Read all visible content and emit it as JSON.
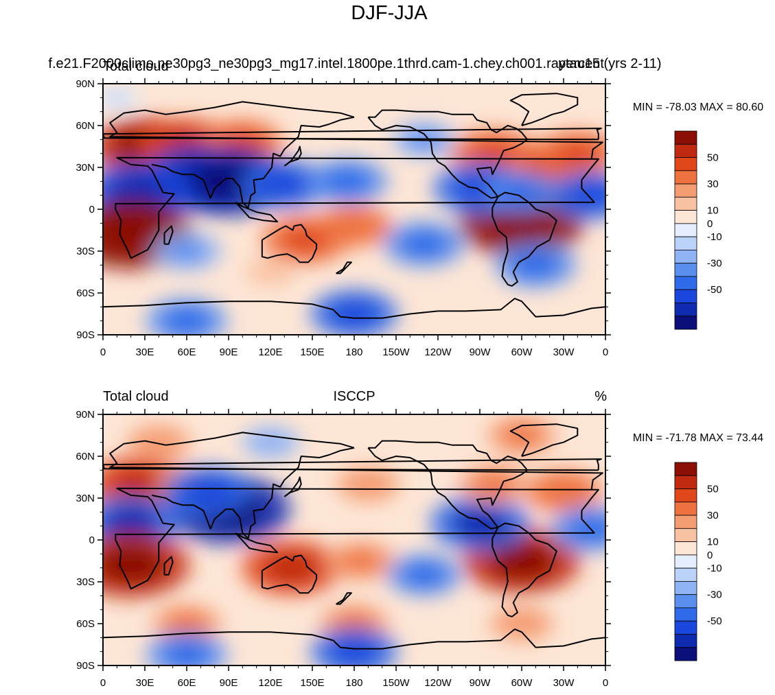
{
  "figure_title": "DJF-JJA",
  "run_title": "f.e21.F2000climo.ne30pg3_ne30pg3_mg17.intel.1800pe.1thrd.cam-1.chey.ch001.raytau15 (yrs 2-11)",
  "chart_data": [
    {
      "type": "heatmap",
      "panel_id": "model",
      "title_left": "Total cloud",
      "title_center": "",
      "title_right": "percent",
      "stats": "MIN = -78.03 MAX =  80.60",
      "xlabel": "",
      "ylabel": "",
      "x_ticks": [
        "0",
        "30E",
        "60E",
        "90E",
        "120E",
        "150E",
        "180",
        "150W",
        "120W",
        "90W",
        "60W",
        "30W",
        "0"
      ],
      "y_ticks": [
        "90N",
        "60N",
        "30N",
        "0",
        "30S",
        "60S",
        "90S"
      ],
      "xlim": [
        0,
        360
      ],
      "ylim": [
        -90,
        90
      ],
      "colorbar_labels": [
        "50",
        "30",
        "10",
        "0",
        "-10",
        "-30",
        "-50"
      ],
      "levels": [
        -60,
        -50,
        -40,
        -30,
        -20,
        -10,
        -5,
        0,
        5,
        10,
        20,
        30,
        40,
        50,
        60
      ],
      "anomalies": [
        {
          "lon": 30,
          "lat": 45,
          "value": 55
        },
        {
          "lon": 60,
          "lat": 45,
          "value": 50
        },
        {
          "lon": 100,
          "lat": 48,
          "value": 35
        },
        {
          "lon": 70,
          "lat": 22,
          "value": -65
        },
        {
          "lon": 90,
          "lat": 20,
          "value": -70
        },
        {
          "lon": 25,
          "lat": 12,
          "value": -55
        },
        {
          "lon": 130,
          "lat": 18,
          "value": -40
        },
        {
          "lon": 175,
          "lat": 20,
          "value": -35
        },
        {
          "lon": 20,
          "lat": -18,
          "value": 70
        },
        {
          "lon": 145,
          "lat": -22,
          "value": 40
        },
        {
          "lon": 180,
          "lat": -12,
          "value": 30
        },
        {
          "lon": 300,
          "lat": -10,
          "value": 70
        },
        {
          "lon": 280,
          "lat": 40,
          "value": 40
        },
        {
          "lon": 320,
          "lat": 32,
          "value": 40
        },
        {
          "lon": 340,
          "lat": 40,
          "value": 35
        },
        {
          "lon": 270,
          "lat": 15,
          "value": -45
        },
        {
          "lon": 300,
          "lat": 12,
          "value": -30
        },
        {
          "lon": 350,
          "lat": 10,
          "value": -40
        },
        {
          "lon": 230,
          "lat": -25,
          "value": -35
        },
        {
          "lon": 310,
          "lat": -40,
          "value": -35
        },
        {
          "lon": 60,
          "lat": -30,
          "value": -25
        },
        {
          "lon": 180,
          "lat": -75,
          "value": -40
        },
        {
          "lon": 60,
          "lat": -80,
          "value": -35
        },
        {
          "lon": 230,
          "lat": 50,
          "value": -20
        },
        {
          "lon": 120,
          "lat": -45,
          "value": 10
        },
        {
          "lon": 10,
          "lat": 80,
          "value": -5
        }
      ]
    },
    {
      "type": "heatmap",
      "panel_id": "obs",
      "title_left": "Total cloud",
      "title_center": "ISCCP",
      "title_right": "%",
      "stats": "MIN = -71.78 MAX =  73.44",
      "xlabel": "",
      "ylabel": "",
      "x_ticks": [
        "0",
        "30E",
        "60E",
        "90E",
        "120E",
        "150E",
        "180",
        "150W",
        "120W",
        "90W",
        "60W",
        "30W",
        "0"
      ],
      "y_ticks": [
        "90N",
        "60N",
        "30N",
        "0",
        "30S",
        "60S",
        "90S"
      ],
      "xlim": [
        0,
        360
      ],
      "ylim": [
        -90,
        90
      ],
      "colorbar_labels": [
        "50",
        "30",
        "10",
        "0",
        "-10",
        "-30",
        "-50"
      ],
      "levels": [
        -60,
        -50,
        -40,
        -30,
        -20,
        -10,
        -5,
        0,
        5,
        10,
        20,
        30,
        40,
        50,
        60
      ],
      "anomalies": [
        {
          "lon": 25,
          "lat": 40,
          "value": 50
        },
        {
          "lon": 60,
          "lat": 40,
          "value": 20
        },
        {
          "lon": 90,
          "lat": 22,
          "value": -70
        },
        {
          "lon": 75,
          "lat": 35,
          "value": -40
        },
        {
          "lon": 20,
          "lat": 12,
          "value": -50
        },
        {
          "lon": 20,
          "lat": -18,
          "value": 65
        },
        {
          "lon": 135,
          "lat": -20,
          "value": 50
        },
        {
          "lon": 185,
          "lat": -15,
          "value": 25
        },
        {
          "lon": 300,
          "lat": -15,
          "value": 65
        },
        {
          "lon": 270,
          "lat": 12,
          "value": -50
        },
        {
          "lon": 330,
          "lat": 35,
          "value": 30
        },
        {
          "lon": 280,
          "lat": 40,
          "value": 25
        },
        {
          "lon": 350,
          "lat": 8,
          "value": -35
        },
        {
          "lon": 230,
          "lat": -25,
          "value": -30
        },
        {
          "lon": 180,
          "lat": -60,
          "value": 25
        },
        {
          "lon": 60,
          "lat": -60,
          "value": 25
        },
        {
          "lon": 300,
          "lat": -60,
          "value": 20
        },
        {
          "lon": 180,
          "lat": -80,
          "value": -40
        },
        {
          "lon": 60,
          "lat": -82,
          "value": -35
        },
        {
          "lon": 40,
          "lat": 70,
          "value": 20
        },
        {
          "lon": 300,
          "lat": 75,
          "value": 25
        },
        {
          "lon": 120,
          "lat": 70,
          "value": -15
        },
        {
          "lon": 190,
          "lat": 40,
          "value": 20
        }
      ]
    }
  ],
  "colors": {
    "scale": [
      "#0a0f7a",
      "#0e2bb0",
      "#1a48dc",
      "#2f6ae8",
      "#5a8ff0",
      "#8fb3f5",
      "#bcd3f9",
      "#e4eefc",
      "#fde6d6",
      "#f9c3a3",
      "#f49c72",
      "#ee7240",
      "#e0481c",
      "#c02a0e",
      "#8b0f05"
    ],
    "coast": "#000000"
  }
}
